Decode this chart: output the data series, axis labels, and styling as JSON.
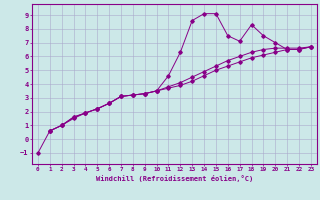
{
  "xlabel": "Windchill (Refroidissement éolien,°C)",
  "bg_color": "#cce8e8",
  "grid_color": "#aaaacc",
  "line_color": "#880088",
  "spine_color": "#880088",
  "xlim": [
    -0.5,
    23.5
  ],
  "ylim": [
    -1.8,
    9.8
  ],
  "xticks": [
    0,
    1,
    2,
    3,
    4,
    5,
    6,
    7,
    8,
    9,
    10,
    11,
    12,
    13,
    14,
    15,
    16,
    17,
    18,
    19,
    20,
    21,
    22,
    23
  ],
  "yticks": [
    -1,
    0,
    1,
    2,
    3,
    4,
    5,
    6,
    7,
    8,
    9
  ],
  "line1_x": [
    0,
    1,
    2,
    3,
    4,
    5,
    6,
    7,
    8,
    9,
    10,
    11,
    12,
    13,
    14,
    15,
    16,
    17,
    18,
    19,
    20,
    21,
    22,
    23
  ],
  "line1_y": [
    -1.0,
    0.6,
    1.0,
    1.5,
    1.9,
    2.2,
    2.6,
    3.1,
    3.2,
    3.3,
    3.5,
    4.6,
    6.3,
    8.6,
    9.1,
    9.1,
    7.5,
    7.1,
    8.3,
    7.5,
    7.0,
    6.5,
    6.5,
    6.7
  ],
  "line2_x": [
    1,
    2,
    3,
    4,
    5,
    6,
    7,
    8,
    9,
    10,
    11,
    12,
    13,
    14,
    15,
    16,
    17,
    18,
    19,
    20,
    21,
    22,
    23
  ],
  "line2_y": [
    0.6,
    1.0,
    1.6,
    1.9,
    2.2,
    2.6,
    3.1,
    3.2,
    3.3,
    3.5,
    3.8,
    4.1,
    4.5,
    4.9,
    5.3,
    5.7,
    6.0,
    6.3,
    6.5,
    6.6,
    6.6,
    6.6,
    6.7
  ],
  "line3_x": [
    1,
    2,
    3,
    4,
    5,
    6,
    7,
    8,
    9,
    10,
    11,
    12,
    13,
    14,
    15,
    16,
    17,
    18,
    19,
    20,
    21,
    22,
    23
  ],
  "line3_y": [
    0.6,
    1.0,
    1.6,
    1.9,
    2.2,
    2.6,
    3.1,
    3.2,
    3.3,
    3.5,
    3.7,
    3.9,
    4.2,
    4.6,
    5.0,
    5.3,
    5.6,
    5.9,
    6.1,
    6.3,
    6.5,
    6.5,
    6.7
  ]
}
